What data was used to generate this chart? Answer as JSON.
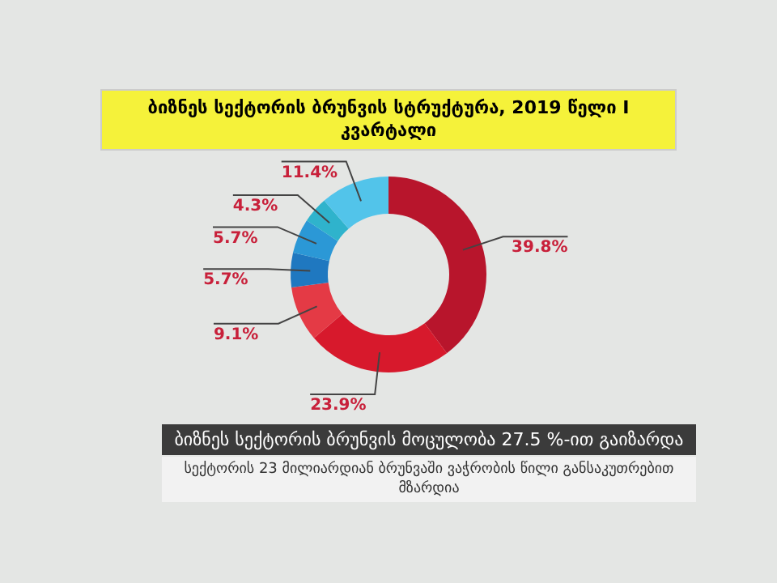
{
  "chart_data": {
    "type": "donut",
    "title": "ბიზნეს სექტორის ბრუნვის სტრუქტურა, 2019 წელი I კვარტალი",
    "categories": [
      null,
      null,
      null,
      null,
      null,
      null,
      null
    ],
    "values": [
      39.8,
      23.9,
      9.1,
      5.7,
      5.7,
      4.3,
      11.4
    ],
    "value_labels": [
      "39.8%",
      "23.9%",
      "9.1%",
      "5.7%",
      "5.7%",
      "4.3%",
      "11.4%"
    ],
    "colors": [
      "#b8152c",
      "#d7192c",
      "#e43a45",
      "#1f78c0",
      "#2b98d6",
      "#2fb3cc",
      "#52c4ea"
    ],
    "annotations": [
      "ბიზნეს სექტორის ბრუნვის მოცულობა 27.5 %-ით გაიზარდა",
      "სექტორის 23 მილიარდიან ბრუნვაში ვაჭრობის წილი განსაკუთრებით მზარდია"
    ]
  }
}
